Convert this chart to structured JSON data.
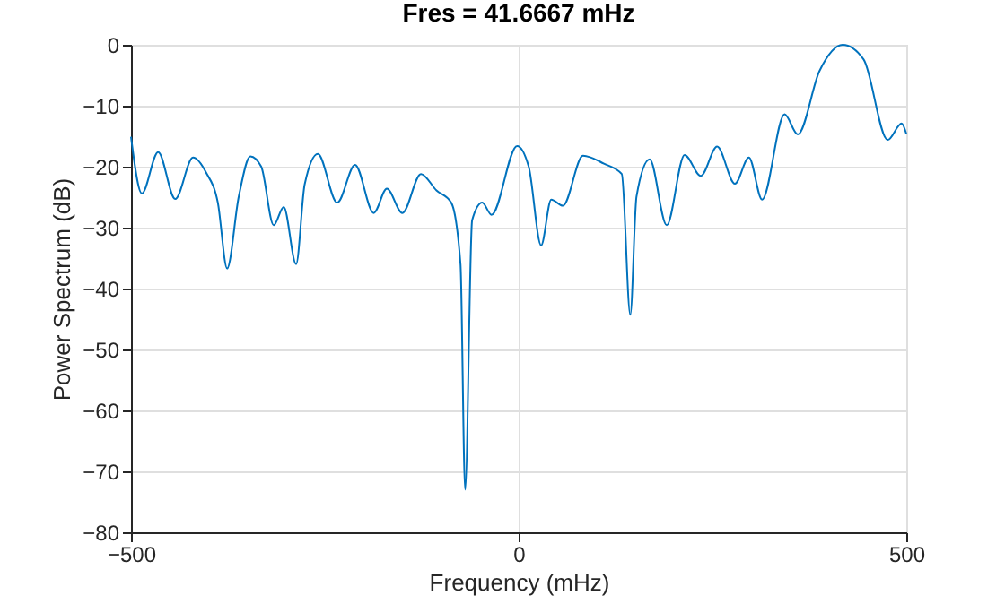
{
  "chart_data": {
    "type": "line",
    "title": "Fres = 41.6667 mHz",
    "xlabel": "Frequency (mHz)",
    "ylabel": "Power Spectrum (dB)",
    "x": [
      -500,
      -486,
      -465,
      -443,
      -420,
      -403,
      -388,
      -376,
      -361,
      -346,
      -332,
      -316,
      -303,
      -287,
      -276,
      -259,
      -234,
      -211,
      -187,
      -170,
      -150,
      -126,
      -106,
      -87,
      -75,
      -69,
      -60,
      -47,
      -35,
      -2,
      13,
      29,
      42,
      57,
      83,
      110,
      133,
      144,
      152,
      169,
      191,
      214,
      235,
      256,
      279,
      297,
      314,
      343,
      360,
      388,
      418,
      445,
      476,
      494,
      500
    ],
    "series": [
      {
        "color": "#0072bd",
        "values": [
          -15.1,
          -24.4,
          -17.6,
          -25.3,
          -18.5,
          -21,
          -25.9,
          -36.7,
          -24.9,
          -18.3,
          -20,
          -29.6,
          -26.6,
          -36,
          -22.9,
          -17.9,
          -25.9,
          -19.7,
          -27.6,
          -23.6,
          -27.6,
          -21.2,
          -23.9,
          -25.9,
          -36,
          -73,
          -28.8,
          -25.9,
          -27.9,
          -16.6,
          -20,
          -32.9,
          -25.4,
          -26.4,
          -18.2,
          -19.5,
          -21.2,
          -44.3,
          -24.9,
          -18.8,
          -29.6,
          -18.1,
          -21.5,
          -16.7,
          -22.8,
          -18.5,
          -25.4,
          -11.4,
          -14.7,
          -4.3,
          0,
          -2.4,
          -15.6,
          -12.9,
          -14.6
        ]
      }
    ],
    "xlim": [
      -500,
      500
    ],
    "xticks": [
      -500,
      0,
      500
    ],
    "ylim": [
      -80,
      0
    ],
    "yticks": [
      -80,
      -70,
      -60,
      -50,
      -40,
      -30,
      -20,
      -10,
      0
    ],
    "grid": true,
    "marker": "none",
    "line_style": "solid"
  }
}
